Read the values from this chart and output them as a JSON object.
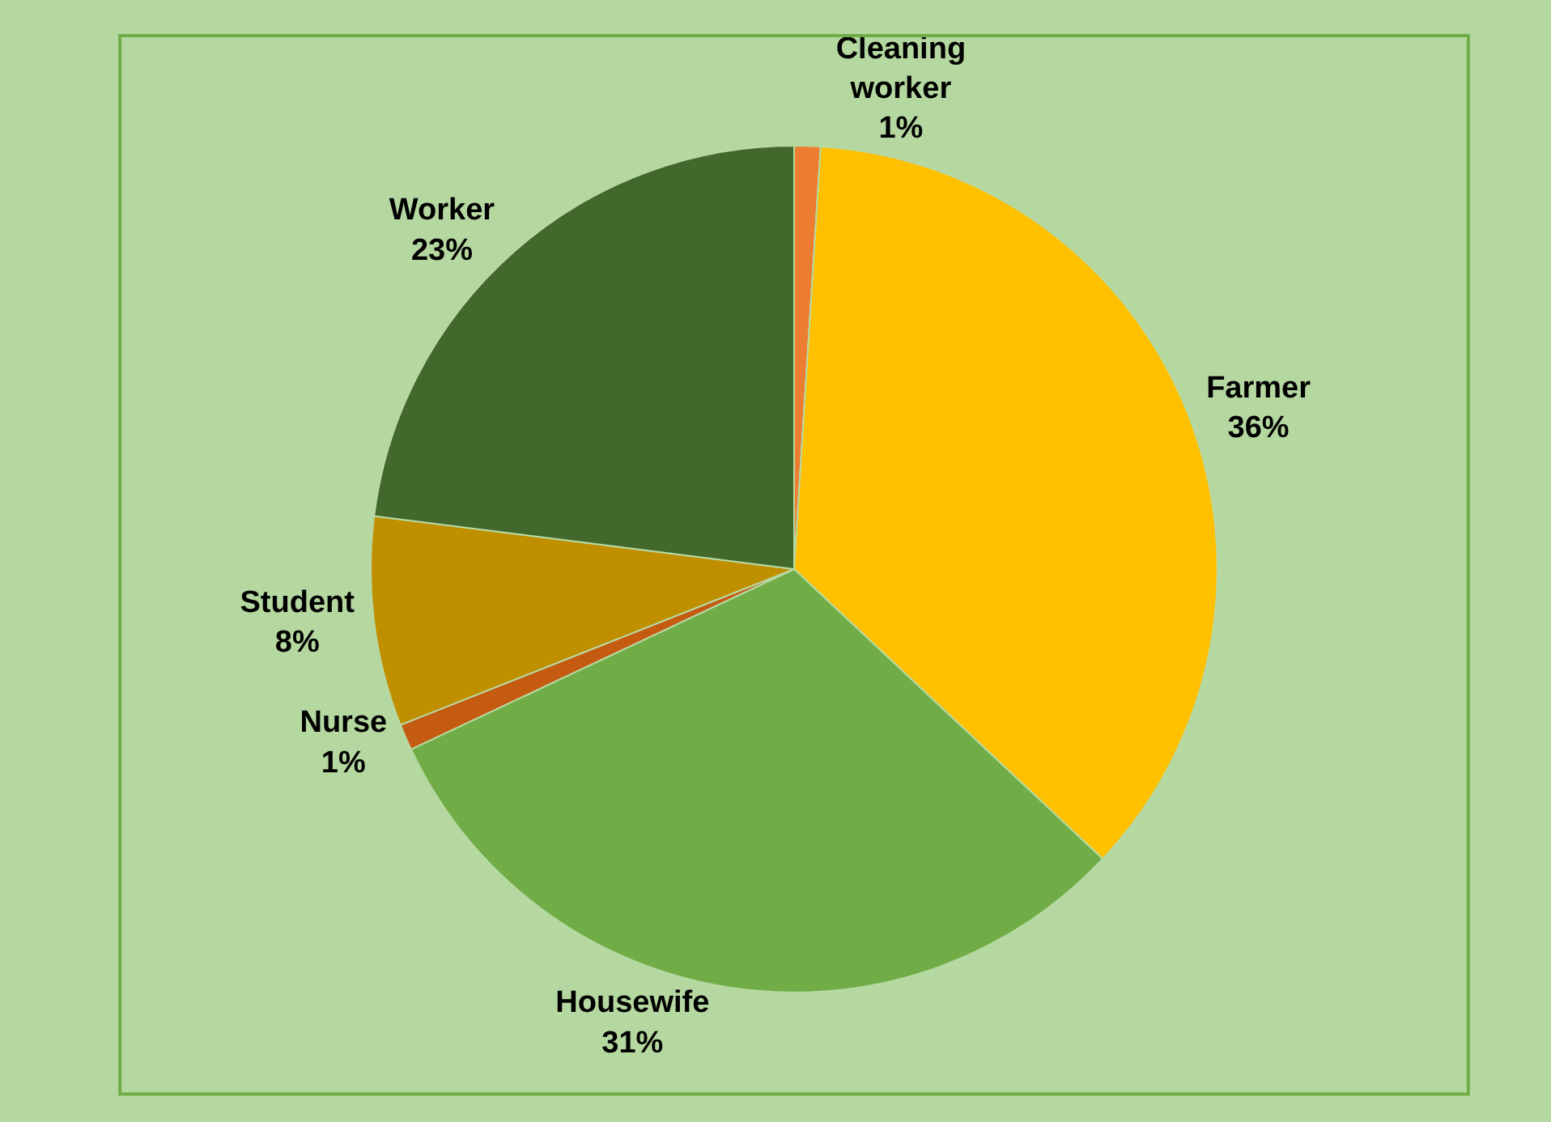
{
  "chart_data": {
    "type": "pie",
    "categories": [
      "Cleaning worker",
      "Farmer",
      "Housewife",
      "Nurse",
      "Student",
      "Worker"
    ],
    "values": [
      1,
      36,
      31,
      1,
      8,
      23
    ],
    "value_labels": [
      "1%",
      "36%",
      "31%",
      "1%",
      "8%",
      "23%"
    ],
    "colors": [
      "#ed7d31",
      "#ffc000",
      "#70ad47",
      "#c55a11",
      "#bf8f00",
      "#43682b"
    ],
    "legend": false
  }
}
